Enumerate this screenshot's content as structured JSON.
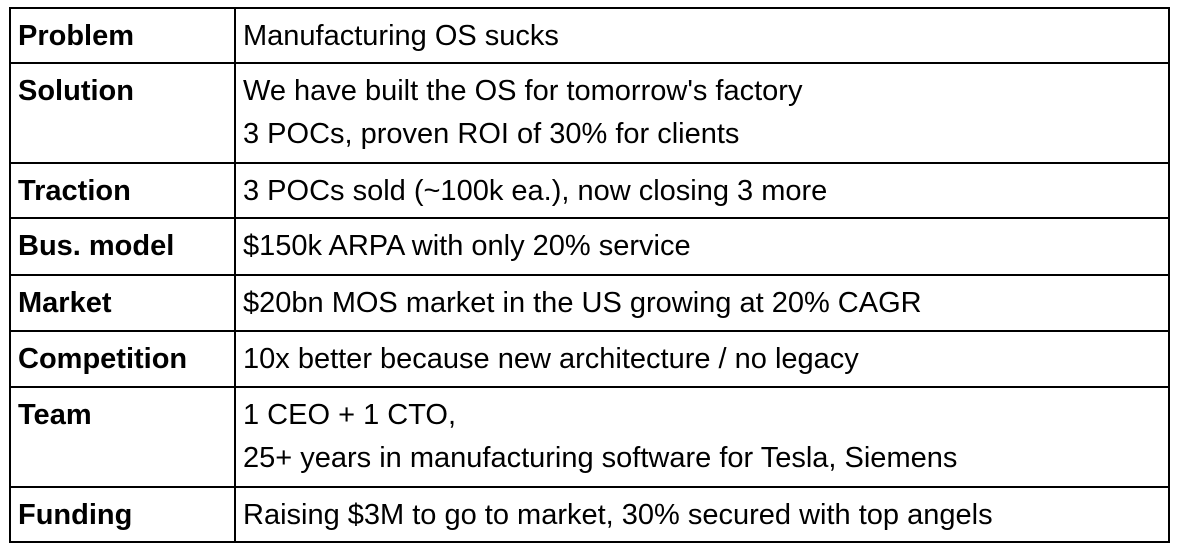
{
  "rows": [
    {
      "label": "Problem",
      "lines": [
        "Manufacturing OS sucks"
      ]
    },
    {
      "label": "Solution",
      "lines": [
        "We have built the OS for tomorrow's factory",
        "3 POCs, proven ROI of 30% for clients"
      ]
    },
    {
      "label": "Traction",
      "lines": [
        "3 POCs sold (~100k ea.), now closing 3 more"
      ]
    },
    {
      "label": "Bus. model",
      "lines": [
        "$150k ARPA with only 20% service"
      ]
    },
    {
      "label": "Market",
      "lines": [
        "$20bn MOS market in the US growing at 20% CAGR"
      ]
    },
    {
      "label": "Competition",
      "lines": [
        "10x better because new architecture / no legacy"
      ]
    },
    {
      "label": "Team",
      "lines": [
        "1 CEO + 1 CTO,",
        "25+ years in manufacturing software for Tesla, Siemens"
      ]
    },
    {
      "label": "Funding",
      "lines": [
        "Raising $3M to go to market, 30% secured with top angels"
      ]
    }
  ]
}
